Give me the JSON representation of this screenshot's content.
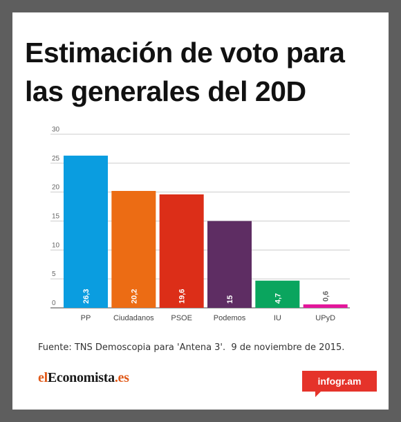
{
  "title": "Estimación de voto para las generales del 20D",
  "source": "Fuente: TNS Demoscopia para 'Antena 3'.  9 de noviembre de 2015.",
  "logo": {
    "part1": "el",
    "part2": "Economista",
    "part3": ".es"
  },
  "badge": "infogr.am",
  "chart_data": {
    "type": "bar",
    "categories": [
      "PP",
      "Ciudadanos",
      "PSOE",
      "Podemos",
      "IU",
      "UPyD"
    ],
    "values": [
      26.3,
      20.2,
      19.6,
      15,
      4.7,
      0.6
    ],
    "value_labels": [
      "26,3",
      "20,2",
      "19,6",
      "15",
      "4,7",
      "0,6"
    ],
    "colors": [
      "#0a9de0",
      "#ec6c14",
      "#dc2e18",
      "#5e2d63",
      "#0aa55e",
      "#e3169b"
    ],
    "yticks": [
      0,
      5,
      10,
      15,
      20,
      25,
      30
    ],
    "ylim": [
      0,
      30
    ],
    "grid": true,
    "legend": "none"
  }
}
